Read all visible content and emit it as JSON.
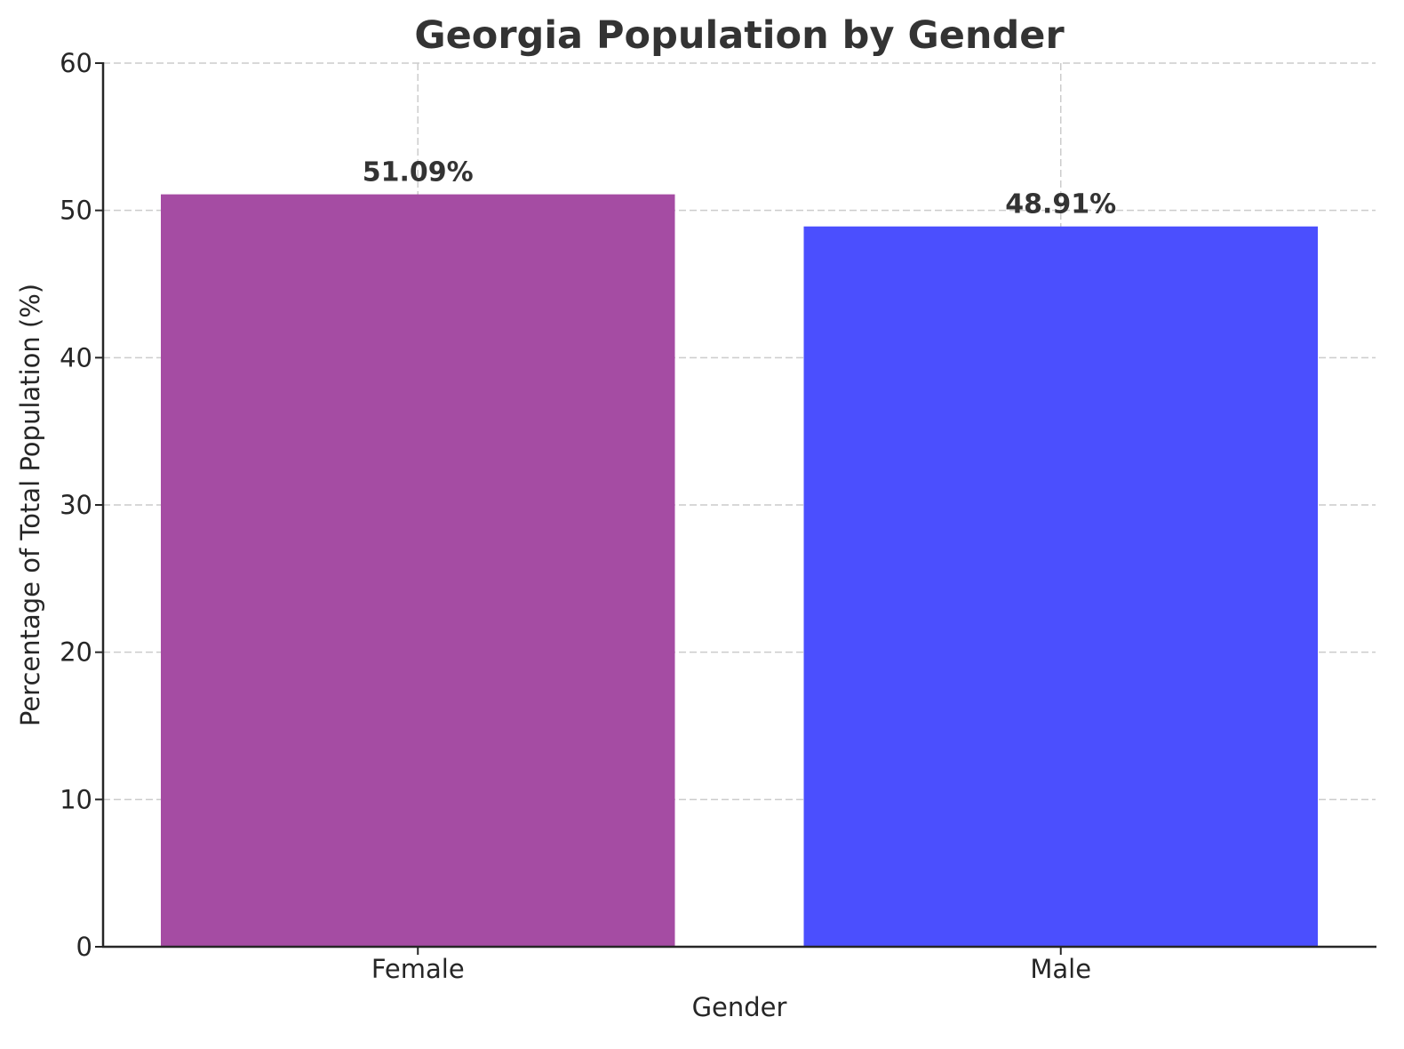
{
  "chart_data": {
    "type": "bar",
    "title": "Georgia Population by Gender",
    "xlabel": "Gender",
    "ylabel": "Percentage of Total Population (%)",
    "categories": [
      "Female",
      "Male"
    ],
    "values": [
      51.09,
      48.91
    ],
    "value_labels": [
      "51.09%",
      "48.91%"
    ],
    "colors": [
      "#a54ca3",
      "#4b4ffe"
    ],
    "ylim": [
      0,
      60
    ],
    "yticks": [
      0,
      10,
      20,
      30,
      40,
      50,
      60
    ],
    "grid": true,
    "legend": null
  }
}
